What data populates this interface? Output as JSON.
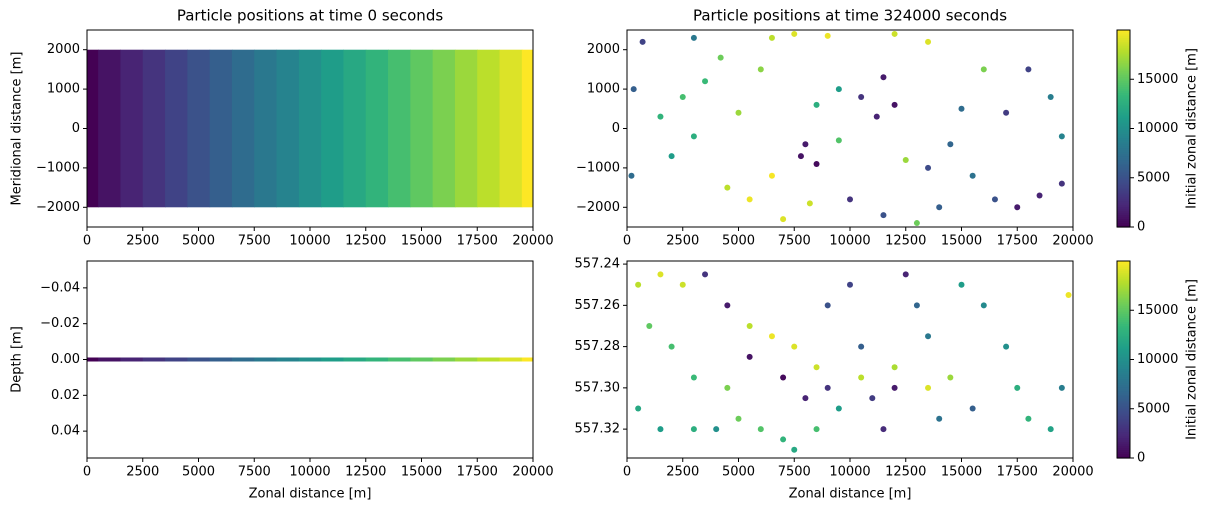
{
  "chart_data": [
    {
      "type": "column_scatter",
      "title": "Particle positions at time 0 seconds",
      "ylabel": "Meridional distance [m]",
      "x": [
        0,
        1000,
        2000,
        3000,
        4000,
        5000,
        6000,
        7000,
        8000,
        9000,
        10000,
        11000,
        12000,
        13000,
        14000,
        15000,
        16000,
        17000,
        18000,
        19000,
        20000
      ],
      "yrange": [
        -2000,
        2000
      ],
      "colormap": "viridis",
      "clim": [
        0,
        20000
      ],
      "xlim": [
        0,
        20000
      ],
      "xticks": [
        0,
        2500,
        5000,
        7500,
        10000,
        12500,
        15000,
        17500,
        20000
      ],
      "ylim": [
        -2500,
        2500
      ],
      "yticks": [
        {
          "value": -2000,
          "label": "−2000"
        },
        {
          "value": -1000,
          "label": "−1000"
        },
        0,
        1000,
        2000
      ]
    },
    {
      "type": "scatter",
      "title": "Particle positions at time 324000 seconds",
      "colormap": "viridis",
      "clim": [
        0,
        20000
      ],
      "x": [
        700,
        300,
        200,
        1500,
        2500,
        3000,
        3500,
        2000,
        4200,
        5000,
        6000,
        6500,
        7500,
        9000,
        12000,
        13500,
        5500,
        6500,
        7000,
        8200,
        4500,
        7800,
        8500,
        8000,
        9500,
        10000,
        11500,
        8500,
        9500,
        10500,
        11500,
        12000,
        11200,
        12500,
        13500,
        14500,
        15000,
        15500,
        16500,
        14000,
        17500,
        18500,
        19500,
        17000,
        18000,
        19000,
        19500,
        16000,
        13000,
        3000
      ],
      "y": [
        2200,
        1000,
        -1200,
        300,
        800,
        -200,
        1200,
        -700,
        1800,
        400,
        1500,
        2300,
        2400,
        2350,
        2400,
        2200,
        -1800,
        -1200,
        -2300,
        -1900,
        -1500,
        -700,
        -900,
        -400,
        -300,
        -1800,
        -2200,
        600,
        1000,
        800,
        1300,
        600,
        300,
        -800,
        -1000,
        -400,
        500,
        -1200,
        -1800,
        -2000,
        -2000,
        -1700,
        -1400,
        400,
        1500,
        800,
        -200,
        1500,
        -2400,
        2300
      ],
      "c": [
        4000,
        6000,
        7000,
        13000,
        14000,
        12500,
        13500,
        11000,
        15500,
        17000,
        16500,
        18000,
        19000,
        19500,
        18500,
        19000,
        19500,
        19800,
        19000,
        18500,
        18000,
        1000,
        500,
        1500,
        14500,
        3000,
        5000,
        12500,
        11000,
        3000,
        1500,
        1000,
        2000,
        17000,
        4500,
        6500,
        7000,
        7500,
        5000,
        6000,
        1500,
        2000,
        3000,
        3500,
        4000,
        8500,
        9000,
        16000,
        15500,
        8000
      ],
      "xlim": [
        0,
        20000
      ],
      "xticks": [
        0,
        2500,
        5000,
        7500,
        10000,
        12500,
        15000,
        17500,
        20000
      ],
      "ylim": [
        -2500,
        2500
      ],
      "yticks": [
        {
          "value": -2000,
          "label": "−2000"
        },
        {
          "value": -1000,
          "label": "−1000"
        },
        0,
        1000,
        2000
      ],
      "colorbar": {
        "label": "Initial zonal distance [m]",
        "ticks": [
          0,
          5000,
          10000,
          15000
        ]
      }
    },
    {
      "type": "tile_scatter",
      "ylabel": "Depth [m]",
      "xlabel": "Zonal distance [m]",
      "colormap": "viridis",
      "clim": [
        0,
        20000
      ],
      "x": [
        0,
        1000,
        2000,
        3000,
        4000,
        5000,
        6000,
        7000,
        8000,
        9000,
        10000,
        11000,
        12000,
        13000,
        14000,
        15000,
        16000,
        17000,
        18000,
        19000,
        20000
      ],
      "y": [
        0,
        0,
        0,
        0,
        0,
        0,
        0,
        0,
        0,
        0,
        0,
        0,
        0,
        0,
        0,
        0,
        0,
        0,
        0,
        0,
        0
      ],
      "xlim": [
        0,
        20000
      ],
      "xticks": [
        0,
        2500,
        5000,
        7500,
        10000,
        12500,
        15000,
        17500,
        20000
      ],
      "ylim": [
        -0.055,
        0.055
      ],
      "y_inverted": true,
      "yticks": [
        {
          "value": -0.04,
          "label": "−0.04"
        },
        {
          "value": -0.02,
          "label": "−0.02"
        },
        {
          "value": 0,
          "label": "0.00"
        },
        0.02,
        0.04
      ]
    },
    {
      "type": "scatter",
      "xlabel": "Zonal distance [m]",
      "colormap": "viridis",
      "clim": [
        0,
        20000
      ],
      "x": [
        500,
        1500,
        2500,
        1000,
        2000,
        3000,
        500,
        1500,
        3000,
        4000,
        4500,
        5000,
        6000,
        7000,
        7500,
        8500,
        5500,
        6500,
        7500,
        8500,
        3500,
        4500,
        5500,
        7000,
        8000,
        9000,
        9000,
        10000,
        10500,
        11000,
        11500,
        12000,
        9500,
        10500,
        12000,
        13500,
        14500,
        13000,
        13500,
        14000,
        15500,
        16000,
        17000,
        17500,
        18000,
        19000,
        19500,
        19800,
        12500,
        15000
      ],
      "y": [
        557.25,
        557.245,
        557.25,
        557.27,
        557.28,
        557.295,
        557.31,
        557.32,
        557.32,
        557.32,
        557.3,
        557.315,
        557.32,
        557.325,
        557.33,
        557.32,
        557.27,
        557.275,
        557.28,
        557.29,
        557.245,
        557.26,
        557.285,
        557.295,
        557.305,
        557.3,
        557.26,
        557.25,
        557.28,
        557.305,
        557.32,
        557.3,
        557.31,
        557.295,
        557.29,
        557.3,
        557.295,
        557.26,
        557.275,
        557.315,
        557.31,
        557.26,
        557.28,
        557.3,
        557.315,
        557.32,
        557.3,
        557.255,
        557.245,
        557.25
      ],
      "c": [
        18000,
        19000,
        18500,
        15000,
        14000,
        13500,
        12000,
        11000,
        12500,
        10000,
        16000,
        15500,
        14500,
        13000,
        12000,
        14000,
        18000,
        19500,
        19000,
        18500,
        3000,
        1500,
        1000,
        500,
        2000,
        3000,
        5000,
        4000,
        6000,
        3500,
        2500,
        1500,
        11000,
        18000,
        17500,
        19000,
        17000,
        6500,
        8000,
        7500,
        6000,
        9500,
        10000,
        12500,
        13000,
        11500,
        8500,
        19500,
        2000,
        11000
      ],
      "xlim": [
        0,
        20000
      ],
      "xticks": [
        0,
        2500,
        5000,
        7500,
        10000,
        12500,
        15000,
        17500,
        20000
      ],
      "ylim": [
        557.2385,
        557.334
      ],
      "y_inverted": true,
      "yticks": [
        557.24,
        557.26,
        557.28,
        {
          "value": 557.3,
          "label": "557.30"
        },
        557.32
      ],
      "colorbar": {
        "label": "Initial zonal distance [m]",
        "ticks": [
          0,
          5000,
          10000,
          15000
        ]
      }
    }
  ]
}
